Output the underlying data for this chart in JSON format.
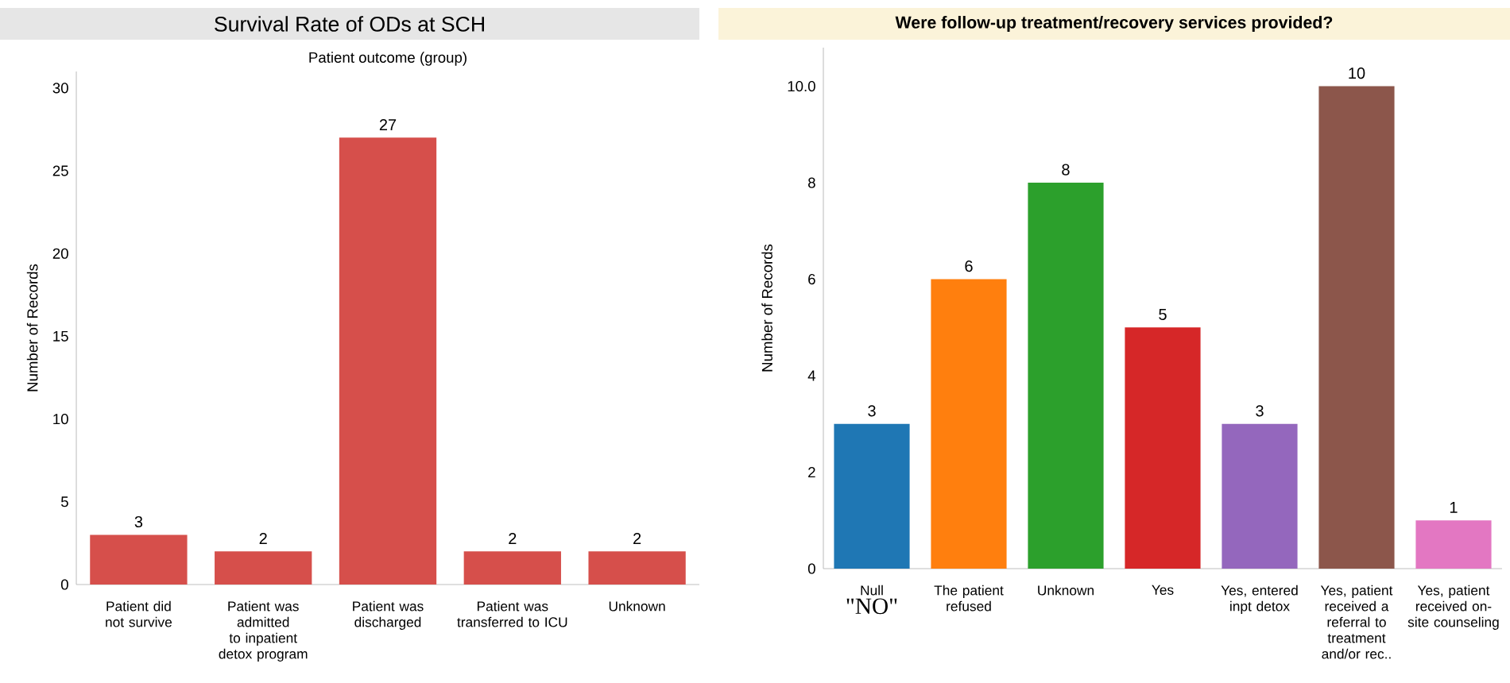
{
  "chart_data": [
    {
      "type": "bar",
      "title": "Survival Rate of ODs at SCH",
      "subtitle": "Patient outcome (group)",
      "ylabel": "Number of Records",
      "categories": [
        "Patient did not survive",
        "Patient was admitted to inpatient detox program",
        "Patient was discharged",
        "Patient was transferred to ICU",
        "Unknown"
      ],
      "values": [
        3,
        2,
        27,
        2,
        2
      ],
      "color": "#d64f4b",
      "ylim": [
        0,
        31
      ],
      "yticks": [
        0,
        5,
        10,
        15,
        20,
        25,
        30
      ],
      "data_labels": true
    },
    {
      "type": "bar",
      "title": "Were follow-up treatment/recovery services provided?",
      "ylabel": "Number of Records",
      "categories": [
        "Null",
        "The patient refused",
        "Unknown",
        "Yes",
        "Yes, entered inpt detox",
        "Yes, patient received a referral to treatment and/or rec..",
        "Yes, patient received on-site counseling"
      ],
      "values": [
        3,
        6,
        8,
        5,
        3,
        10,
        1
      ],
      "colors": [
        "#1f77b4",
        "#ff7f0e",
        "#2ca02c",
        "#d62728",
        "#9467bd",
        "#8c564b",
        "#e377c2"
      ],
      "ylim": [
        0,
        10.8
      ],
      "yticks": [
        0,
        2,
        4,
        6,
        8,
        {
          "value": 10,
          "label": "10.0"
        }
      ],
      "data_labels": true,
      "annotations": [
        "\"NO\""
      ]
    }
  ]
}
